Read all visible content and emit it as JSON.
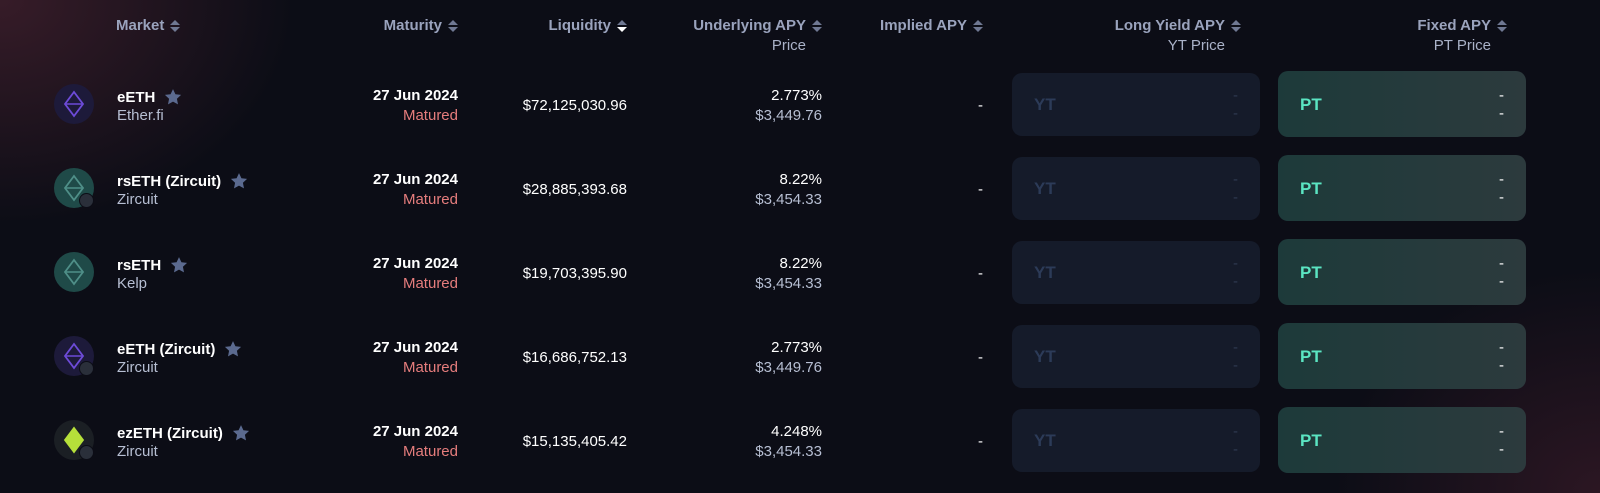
{
  "header": {
    "market": "Market",
    "maturity": "Maturity",
    "liquidity": "Liquidity",
    "underlying_apy": "Underlying APY",
    "underlying_sub": "Price",
    "implied_apy": "Implied APY",
    "long_yield_apy": "Long Yield APY",
    "long_yield_sub": "YT Price",
    "fixed_apy": "Fixed APY",
    "fixed_sub": "PT Price"
  },
  "rows": [
    {
      "name": "eETH",
      "protocol": "Ether.fi",
      "maturity": "27 Jun 2024",
      "status": "Matured",
      "liquidity": "$72,125,030.96",
      "underlying_apy": "2.773%",
      "price": "$3,449.76",
      "implied_apy": "-",
      "yt_label": "YT",
      "yt_apy": "-",
      "yt_price": "-",
      "pt_label": "PT",
      "pt_apy": "-",
      "pt_price": "-",
      "icon": "eeth-icon",
      "icon_color": "#6d4bd8",
      "badge": false
    },
    {
      "name": "rsETH (Zircuit)",
      "protocol": "Zircuit",
      "maturity": "27 Jun 2024",
      "status": "Matured",
      "liquidity": "$28,885,393.68",
      "underlying_apy": "8.22%",
      "price": "$3,454.33",
      "implied_apy": "-",
      "yt_label": "YT",
      "yt_apy": "-",
      "yt_price": "-",
      "pt_label": "PT",
      "pt_apy": "-",
      "pt_price": "-",
      "icon": "rseth-icon",
      "icon_color": "#4f8f88",
      "badge": true
    },
    {
      "name": "rsETH",
      "protocol": "Kelp",
      "maturity": "27 Jun 2024",
      "status": "Matured",
      "liquidity": "$19,703,395.90",
      "underlying_apy": "8.22%",
      "price": "$3,454.33",
      "implied_apy": "-",
      "yt_label": "YT",
      "yt_apy": "-",
      "yt_price": "-",
      "pt_label": "PT",
      "pt_apy": "-",
      "pt_price": "-",
      "icon": "rseth-icon",
      "icon_color": "#4f8f88",
      "badge": false
    },
    {
      "name": "eETH (Zircuit)",
      "protocol": "Zircuit",
      "maturity": "27 Jun 2024",
      "status": "Matured",
      "liquidity": "$16,686,752.13",
      "underlying_apy": "2.773%",
      "price": "$3,449.76",
      "implied_apy": "-",
      "yt_label": "YT",
      "yt_apy": "-",
      "yt_price": "-",
      "pt_label": "PT",
      "pt_apy": "-",
      "pt_price": "-",
      "icon": "eeth-icon",
      "icon_color": "#6d4bd8",
      "badge": true
    },
    {
      "name": "ezETH (Zircuit)",
      "protocol": "Zircuit",
      "maturity": "27 Jun 2024",
      "status": "Matured",
      "liquidity": "$15,135,405.42",
      "underlying_apy": "4.248%",
      "price": "$3,454.33",
      "implied_apy": "-",
      "yt_label": "YT",
      "yt_apy": "-",
      "yt_price": "-",
      "pt_label": "PT",
      "pt_apy": "-",
      "pt_price": "-",
      "icon": "ezeth-icon",
      "icon_color": "#b6e03a",
      "badge": true
    }
  ],
  "colors": {
    "background": "#0c0d16",
    "matured": "#e67d7d",
    "pt_accent": "#5be5c2",
    "yt_dim": "#2c3b58",
    "star": "#5b6a8f"
  }
}
